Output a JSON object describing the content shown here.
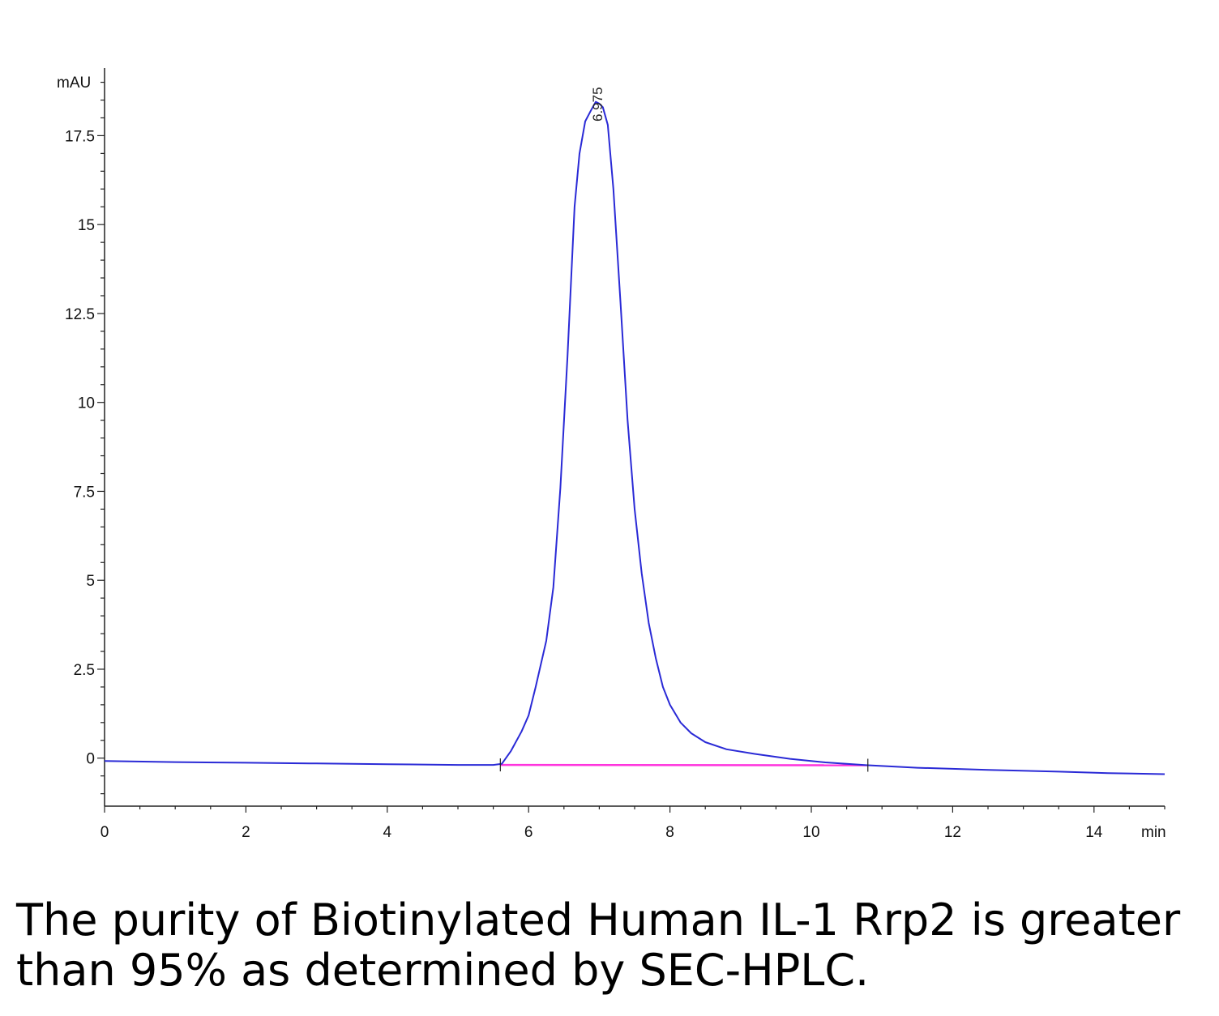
{
  "chart_data": {
    "type": "line",
    "title": "",
    "xlabel": "",
    "ylabel": "",
    "x_unit": "min",
    "y_unit": "mAU",
    "xlim": [
      0,
      15
    ],
    "ylim": [
      -1.35,
      19.4
    ],
    "x_ticks": [
      0,
      2,
      4,
      6,
      8,
      10,
      12,
      14
    ],
    "y_ticks": [
      0,
      2.5,
      5,
      7.5,
      10,
      12.5,
      15,
      17.5
    ],
    "grid": false,
    "peak_label": "6.975",
    "peak_x": 6.975,
    "series": [
      {
        "color": "#2a2ad6",
        "x": [
          0,
          1,
          2,
          3,
          4,
          5,
          5.5,
          5.62,
          5.75,
          5.9,
          6.0,
          6.1,
          6.25,
          6.35,
          6.45,
          6.55,
          6.65,
          6.72,
          6.8,
          6.88,
          6.95,
          7.0,
          7.05,
          7.12,
          7.2,
          7.3,
          7.4,
          7.5,
          7.6,
          7.7,
          7.8,
          7.9,
          8.0,
          8.15,
          8.3,
          8.5,
          8.8,
          9.2,
          9.7,
          10.2,
          10.5,
          10.8,
          11.5,
          12.5,
          13.5,
          14.2,
          15.0
        ],
        "y": [
          -0.08,
          -0.11,
          -0.13,
          -0.15,
          -0.17,
          -0.19,
          -0.19,
          -0.16,
          0.2,
          0.75,
          1.2,
          2.0,
          3.3,
          4.8,
          7.6,
          11.3,
          15.5,
          17.0,
          17.9,
          18.2,
          18.45,
          18.4,
          18.3,
          17.8,
          16.0,
          12.8,
          9.5,
          7.0,
          5.2,
          3.8,
          2.8,
          2.0,
          1.5,
          1.0,
          0.7,
          0.45,
          0.25,
          0.12,
          -0.02,
          -0.12,
          -0.16,
          -0.2,
          -0.27,
          -0.33,
          -0.38,
          -0.42,
          -0.45
        ]
      },
      {
        "color": "#ff33dd",
        "x": [
          5.6,
          10.8
        ],
        "y": [
          -0.19,
          -0.2
        ]
      }
    ]
  },
  "caption": "The purity of Biotinylated Human IL-1 Rrp2 is greater than 95% as determined by SEC-HPLC."
}
